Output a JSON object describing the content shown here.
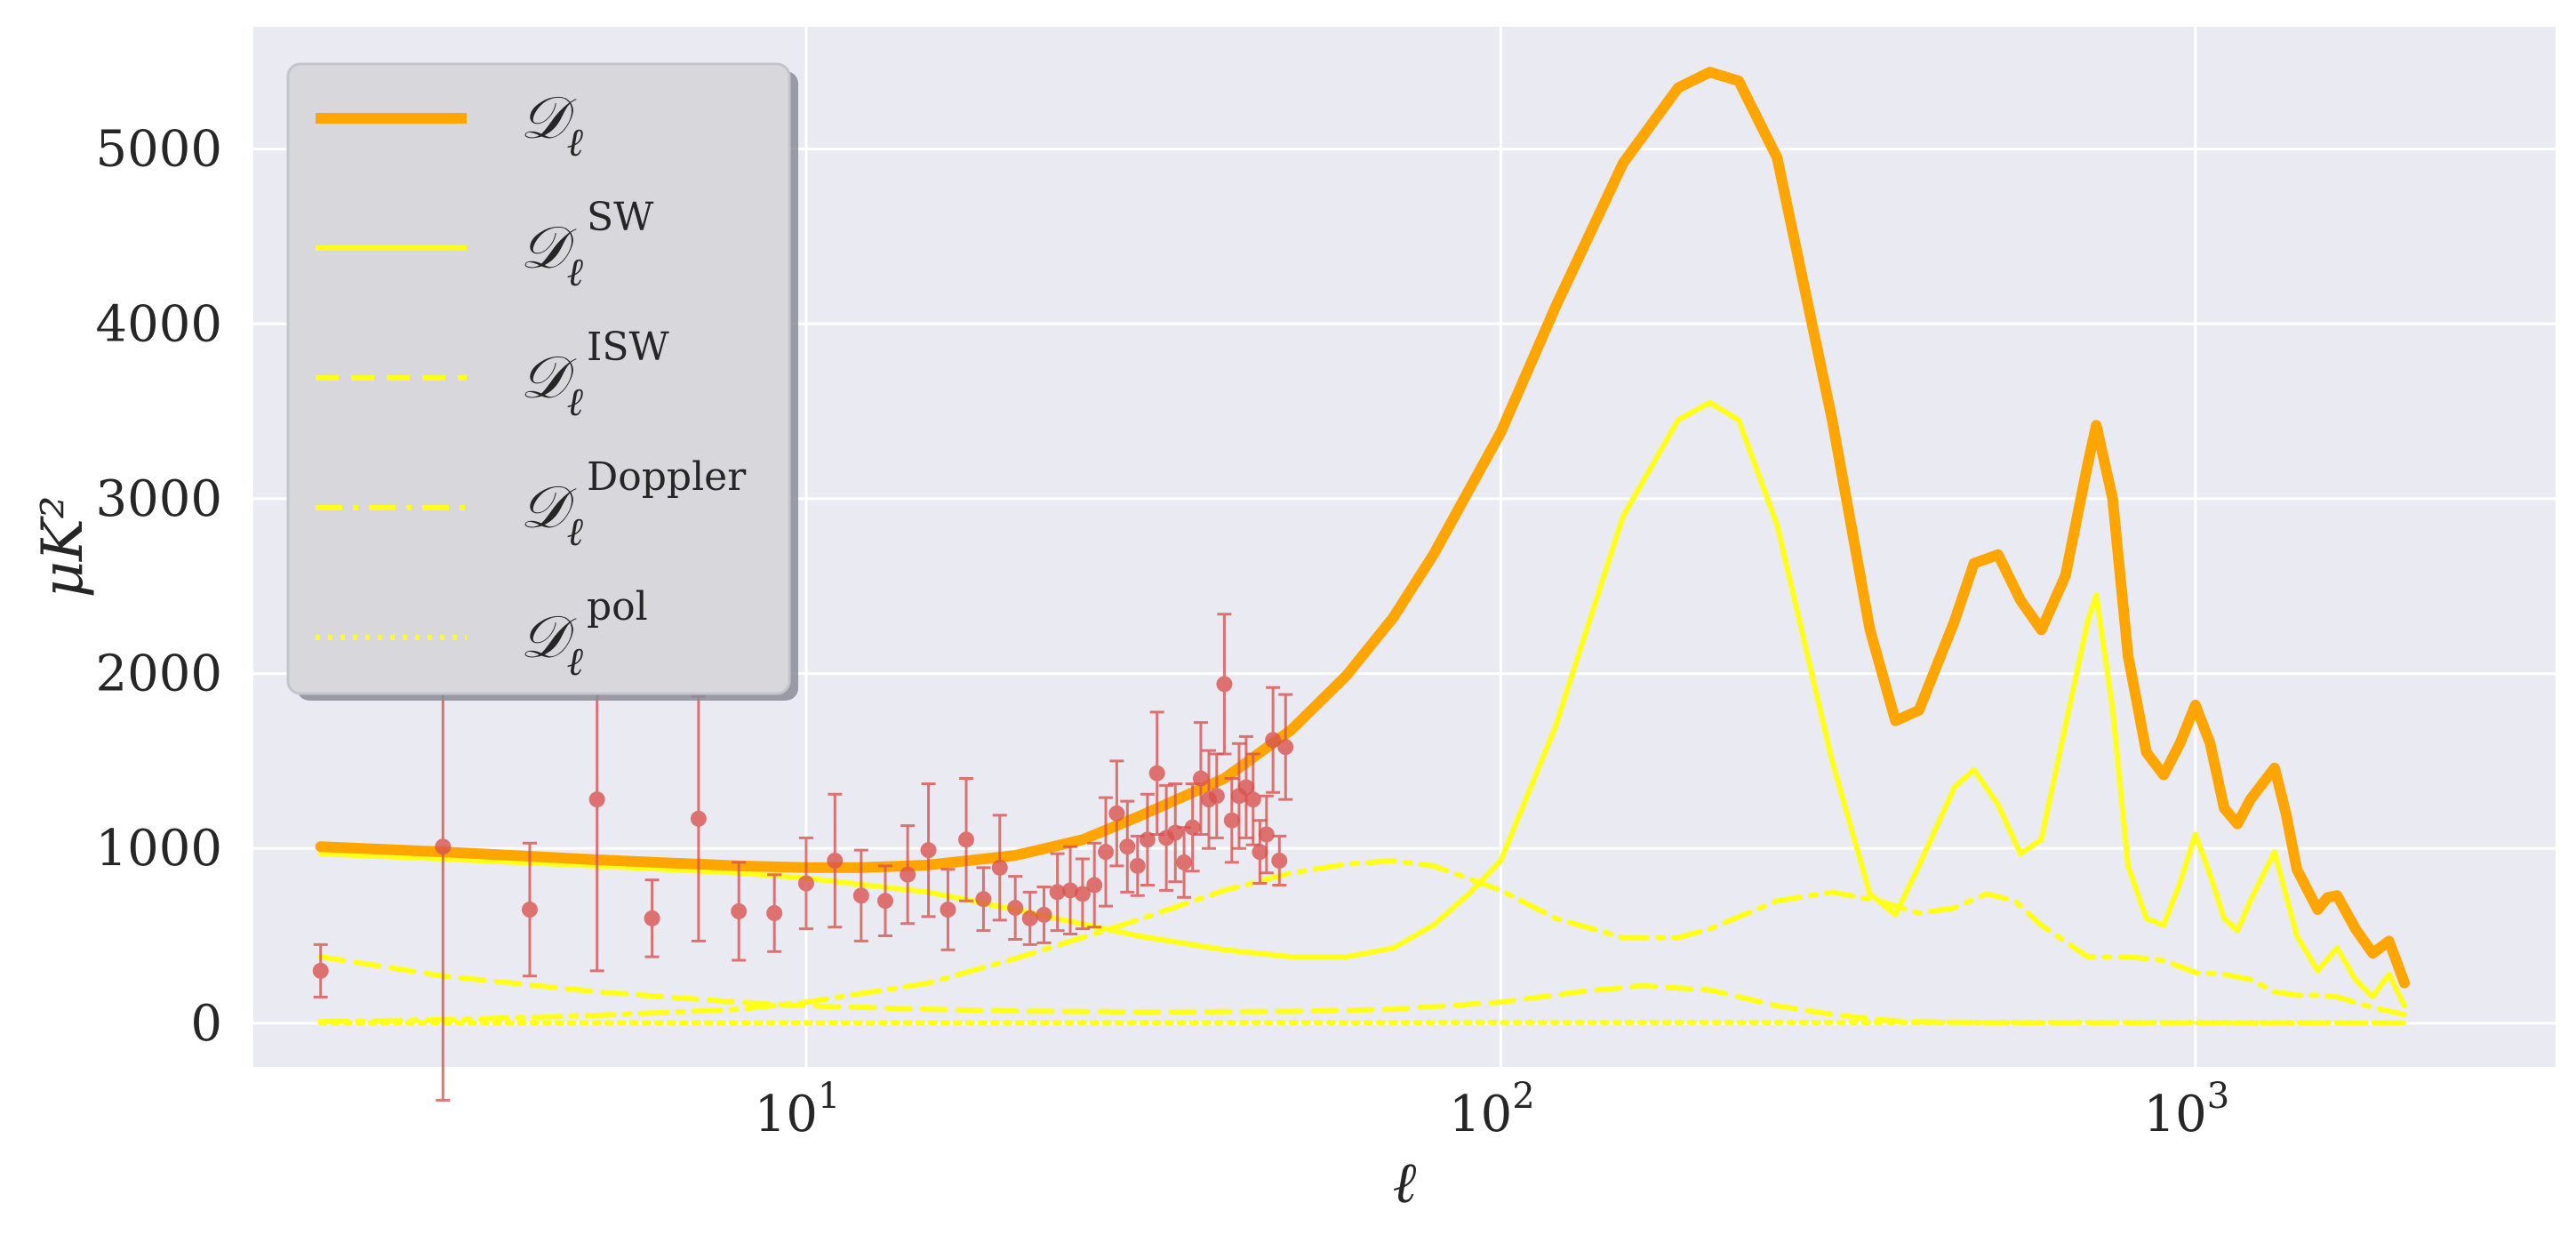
{
  "chart_data": {
    "type": "line",
    "title": "",
    "xlabel": "ℓ",
    "ylabel": "μK²",
    "xscale": "log",
    "xlim": [
      1.6,
      3300
    ],
    "ylim": [
      -250,
      5700
    ],
    "grid": true,
    "legend_position": "upper-left",
    "xtick_labels": [
      {
        "base": "10",
        "exp": "1",
        "value": 10
      },
      {
        "base": "10",
        "exp": "2",
        "value": 100
      },
      {
        "base": "10",
        "exp": "3",
        "value": 1000
      }
    ],
    "ytick_labels": [
      "0",
      "1000",
      "2000",
      "3000",
      "4000",
      "5000"
    ],
    "ytick_values": [
      0,
      1000,
      2000,
      3000,
      4000,
      5000
    ],
    "colors": {
      "total": "#ffa500",
      "components": "#ffff1a",
      "data": "#d9534f",
      "background": "#eaeaf2",
      "grid": "#ffffff"
    },
    "series": [
      {
        "name": "𝒟ℓ",
        "label_main": "𝒟",
        "label_sub": "ℓ",
        "label_sup": "",
        "style": "solid-thick",
        "color": "#ffa500",
        "x": [
          2,
          3,
          5,
          8,
          10,
          12,
          15,
          20,
          25,
          30,
          40,
          50,
          60,
          70,
          80,
          90,
          100,
          120,
          150,
          180,
          200,
          220,
          250,
          300,
          340,
          370,
          400,
          450,
          480,
          520,
          560,
          600,
          650,
          700,
          720,
          760,
          800,
          850,
          900,
          950,
          1000,
          1050,
          1100,
          1150,
          1200,
          1300,
          1350,
          1400,
          1500,
          1550,
          1600,
          1700,
          1800,
          1900,
          2000
        ],
        "y": [
          1010,
          980,
          935,
          900,
          890,
          890,
          905,
          960,
          1050,
          1180,
          1400,
          1680,
          1990,
          2320,
          2680,
          3050,
          3380,
          4100,
          4920,
          5350,
          5440,
          5390,
          4950,
          3450,
          2250,
          1730,
          1790,
          2300,
          2630,
          2680,
          2420,
          2250,
          2560,
          3200,
          3420,
          3000,
          2100,
          1550,
          1420,
          1600,
          1820,
          1600,
          1230,
          1140,
          1280,
          1460,
          1200,
          880,
          650,
          720,
          730,
          540,
          400,
          470,
          230
        ]
      },
      {
        "name": "𝒟ℓ^SW",
        "label_main": "𝒟",
        "label_sub": "ℓ",
        "label_sup": "SW",
        "style": "solid",
        "color": "#ffff1a",
        "x": [
          2,
          3,
          5,
          8,
          10,
          15,
          20,
          30,
          40,
          50,
          60,
          70,
          80,
          90,
          100,
          120,
          150,
          180,
          200,
          220,
          250,
          300,
          340,
          370,
          400,
          450,
          480,
          520,
          560,
          600,
          650,
          700,
          720,
          760,
          800,
          850,
          900,
          950,
          1000,
          1050,
          1100,
          1150,
          1200,
          1300,
          1400,
          1500,
          1600,
          1700,
          1800,
          1900,
          2000
        ],
        "y": [
          970,
          940,
          900,
          860,
          830,
          750,
          650,
          500,
          420,
          380,
          380,
          430,
          560,
          740,
          930,
          1700,
          2900,
          3450,
          3550,
          3450,
          2850,
          1500,
          740,
          620,
          900,
          1350,
          1450,
          1250,
          970,
          1050,
          1700,
          2300,
          2450,
          1800,
          900,
          600,
          560,
          800,
          1080,
          850,
          600,
          530,
          700,
          980,
          500,
          300,
          430,
          250,
          150,
          280,
          100
        ]
      },
      {
        "name": "𝒟ℓ^ISW",
        "label_main": "𝒟",
        "label_sub": "ℓ",
        "label_sup": "ISW",
        "style": "dashed",
        "color": "#ffff1a",
        "x": [
          2,
          3,
          5,
          8,
          10,
          15,
          20,
          30,
          50,
          70,
          100,
          130,
          160,
          200,
          250,
          300,
          350,
          400,
          500,
          700,
          1000,
          1500,
          2000
        ],
        "y": [
          380,
          270,
          180,
          120,
          100,
          80,
          70,
          65,
          68,
          80,
          120,
          180,
          215,
          190,
          100,
          50,
          20,
          8,
          4,
          2,
          1,
          0,
          0
        ]
      },
      {
        "name": "𝒟ℓ^Doppler",
        "label_main": "𝒟",
        "label_sub": "ℓ",
        "label_sup": "Doppler",
        "style": "dashdot",
        "color": "#ffff1a",
        "x": [
          2,
          3,
          5,
          8,
          10,
          15,
          20,
          30,
          40,
          50,
          60,
          70,
          80,
          100,
          120,
          150,
          180,
          200,
          250,
          300,
          350,
          400,
          450,
          500,
          550,
          600,
          700,
          800,
          900,
          1000,
          1100,
          1200,
          1300,
          1400,
          1500,
          1600,
          1800,
          2000
        ],
        "y": [
          10,
          20,
          45,
          80,
          120,
          230,
          370,
          590,
          760,
          860,
          910,
          930,
          900,
          760,
          600,
          490,
          490,
          540,
          700,
          750,
          700,
          630,
          660,
          740,
          700,
          560,
          380,
          380,
          360,
          290,
          280,
          250,
          180,
          160,
          160,
          150,
          90,
          50
        ]
      },
      {
        "name": "𝒟ℓ^pol",
        "label_main": "𝒟",
        "label_sub": "ℓ",
        "label_sup": "pol",
        "style": "dotted",
        "color": "#ffff1a",
        "x": [
          2,
          10,
          100,
          1000,
          2000
        ],
        "y": [
          2,
          3,
          5,
          5,
          3
        ]
      }
    ],
    "data_points": {
      "color": "#d9534f",
      "x": [
        2,
        3,
        4,
        5,
        6,
        7,
        8,
        9,
        10,
        11,
        12,
        13,
        14,
        15,
        16,
        17,
        18,
        19,
        20,
        21,
        22,
        23,
        24,
        25,
        26,
        27,
        28,
        29,
        30,
        31,
        32,
        33,
        34,
        35,
        36,
        37,
        38,
        39,
        40,
        41,
        42,
        43,
        44,
        45,
        46,
        47,
        48,
        49
      ],
      "y": [
        300,
        1010,
        650,
        1280,
        600,
        1170,
        640,
        630,
        800,
        930,
        730,
        700,
        850,
        990,
        650,
        1050,
        710,
        890,
        660,
        600,
        620,
        750,
        760,
        740,
        790,
        980,
        1200,
        1010,
        900,
        1050,
        1430,
        1060,
        1090,
        920,
        1120,
        1400,
        1280,
        1300,
        1940,
        1160,
        1300,
        1350,
        1280,
        980,
        1080,
        1620,
        930,
        1580
      ],
      "err": [
        150,
        1450,
        380,
        980,
        220,
        700,
        280,
        220,
        260,
        380,
        260,
        200,
        280,
        380,
        230,
        350,
        180,
        300,
        180,
        150,
        160,
        220,
        250,
        200,
        240,
        310,
        300,
        260,
        170,
        260,
        350,
        300,
        280,
        200,
        250,
        320,
        280,
        240,
        400,
        240,
        300,
        290,
        260,
        180,
        220,
        300,
        140,
        300
      ]
    }
  }
}
